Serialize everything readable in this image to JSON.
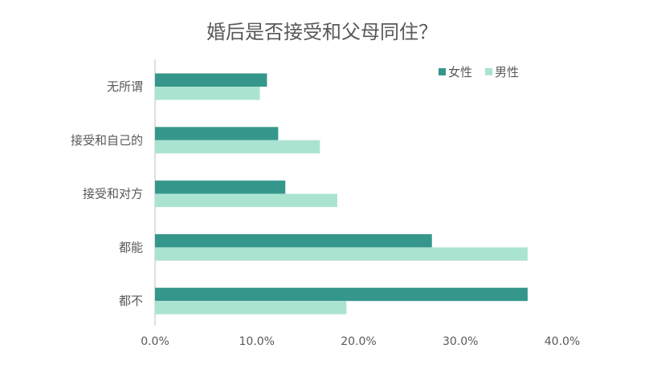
{
  "chart_data": {
    "type": "bar",
    "orientation": "horizontal",
    "title": "婚后是否接受和父母同住？",
    "categories": [
      "无所谓",
      "接受和自己的",
      "接受和对方",
      "都能",
      "都不"
    ],
    "series": [
      {
        "name": "女性",
        "color": "#35978B",
        "values": [
          11.0,
          12.1,
          12.8,
          27.2,
          36.6
        ]
      },
      {
        "name": "男性",
        "color": "#ABE3D1",
        "values": [
          10.3,
          16.2,
          17.9,
          36.6,
          18.8
        ]
      }
    ],
    "x_ticks": [
      "0.0%",
      "10.0%",
      "20.0%",
      "30.0%",
      "40.0%"
    ],
    "xlim": [
      0,
      40
    ],
    "value_unit": "%",
    "grid": false,
    "legend_position": "top-right"
  }
}
